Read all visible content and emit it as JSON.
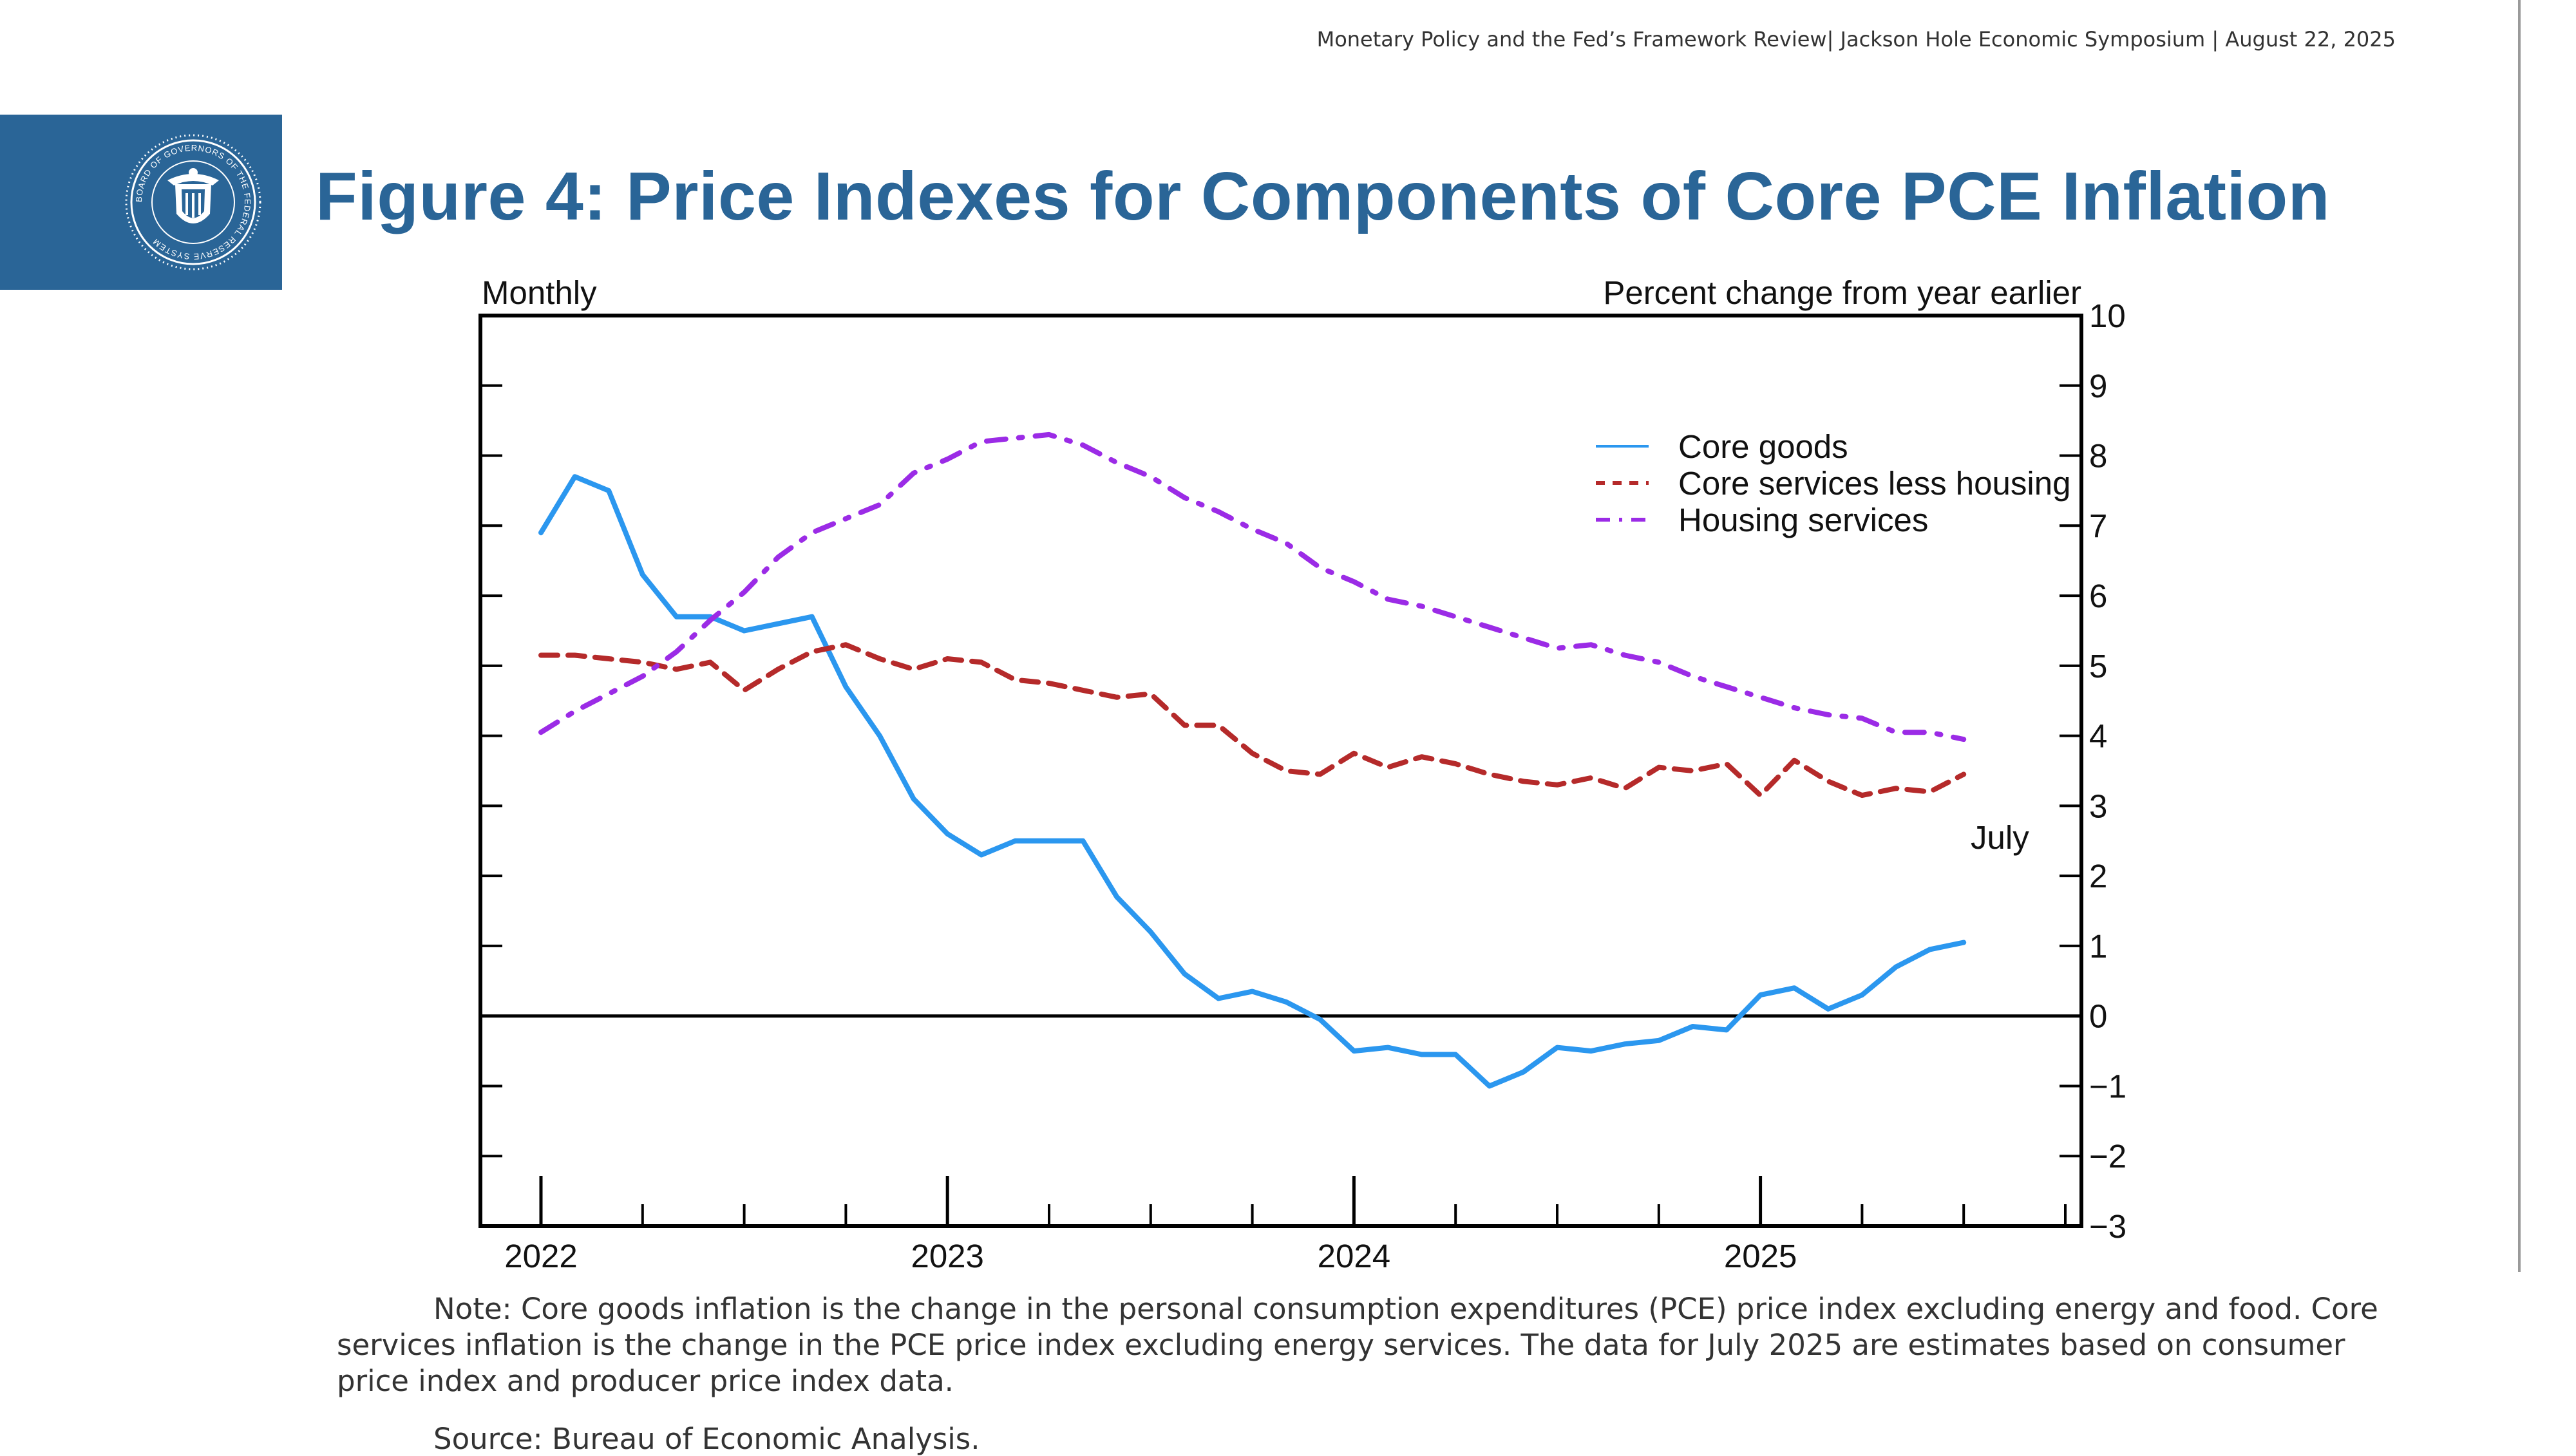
{
  "header": {
    "text": "Monetary Policy and the Fed’s Framework Review| Jackson Hole Economic Symposium | August 22, 2025"
  },
  "logo": {
    "seal_text": "BOARD OF GOVERNORS OF THE FEDERAL RESERVE SYSTEM"
  },
  "figure": {
    "title": "Figure 4: Price Indexes for Components of Core PCE Inflation",
    "note": "Note: Core goods inflation is the change in the personal consumption expenditures (PCE) price index excluding energy and food. Core services inflation is the change in the PCE price index excluding energy services. The data for July 2025 are estimates based on consumer price index and producer price index data.",
    "source": "Source: Bureau of Economic Analysis."
  },
  "colors": {
    "brand": "#2a6597",
    "core_goods": "#2b97ef",
    "core_services_less_housing": "#b52a2a",
    "housing_services": "#9b2be6"
  },
  "chart_data": {
    "type": "line",
    "left_label": "Monthly",
    "right_label": "Percent change from year earlier",
    "end_annotation": "July",
    "ylim": [
      -3,
      10
    ],
    "y_ticks": [
      10,
      9,
      8,
      7,
      6,
      5,
      4,
      3,
      2,
      1,
      0,
      -1,
      -2,
      -3
    ],
    "y_tick_labels": [
      "10",
      "9",
      "8",
      "7",
      "6",
      "5",
      "4",
      "3",
      "2",
      "1",
      "0",
      "−1",
      "−2",
      "−3"
    ],
    "x_start": "2022-01",
    "x_end": "2025-07",
    "year_labels": [
      "2022",
      "2023",
      "2024",
      "2025"
    ],
    "zero_line": true,
    "legend_position": "top-right",
    "series": [
      {
        "name": "Core goods",
        "style": "solid",
        "x": [
          "2022-01",
          "2022-02",
          "2022-03",
          "2022-04",
          "2022-05",
          "2022-06",
          "2022-07",
          "2022-08",
          "2022-09",
          "2022-10",
          "2022-11",
          "2022-12",
          "2023-01",
          "2023-02",
          "2023-03",
          "2023-04",
          "2023-05",
          "2023-06",
          "2023-07",
          "2023-08",
          "2023-09",
          "2023-10",
          "2023-11",
          "2023-12",
          "2024-01",
          "2024-02",
          "2024-03",
          "2024-04",
          "2024-05",
          "2024-06",
          "2024-07",
          "2024-08",
          "2024-09",
          "2024-10",
          "2024-11",
          "2024-12",
          "2025-01",
          "2025-02",
          "2025-03",
          "2025-04",
          "2025-05",
          "2025-06",
          "2025-07"
        ],
        "values": [
          6.9,
          7.7,
          7.5,
          6.3,
          5.7,
          5.7,
          5.5,
          5.6,
          5.7,
          4.7,
          4.0,
          3.1,
          2.6,
          2.3,
          2.5,
          2.5,
          2.5,
          1.7,
          1.2,
          0.6,
          0.25,
          0.35,
          0.2,
          -0.05,
          -0.5,
          -0.45,
          -0.55,
          -0.55,
          -1.0,
          -0.8,
          -0.45,
          -0.5,
          -0.4,
          -0.35,
          -0.15,
          -0.2,
          0.3,
          0.4,
          0.1,
          0.3,
          0.7,
          0.95,
          1.05
        ]
      },
      {
        "name": "Core services less housing",
        "style": "dashed",
        "x": [
          "2022-01",
          "2022-02",
          "2022-03",
          "2022-04",
          "2022-05",
          "2022-06",
          "2022-07",
          "2022-08",
          "2022-09",
          "2022-10",
          "2022-11",
          "2022-12",
          "2023-01",
          "2023-02",
          "2023-03",
          "2023-04",
          "2023-05",
          "2023-06",
          "2023-07",
          "2023-08",
          "2023-09",
          "2023-10",
          "2023-11",
          "2023-12",
          "2024-01",
          "2024-02",
          "2024-03",
          "2024-04",
          "2024-05",
          "2024-06",
          "2024-07",
          "2024-08",
          "2024-09",
          "2024-10",
          "2024-11",
          "2024-12",
          "2025-01",
          "2025-02",
          "2025-03",
          "2025-04",
          "2025-05",
          "2025-06",
          "2025-07"
        ],
        "values": [
          5.15,
          5.15,
          5.1,
          5.05,
          4.95,
          5.05,
          4.65,
          4.95,
          5.2,
          5.3,
          5.1,
          4.95,
          5.1,
          5.05,
          4.8,
          4.75,
          4.65,
          4.55,
          4.6,
          4.15,
          4.15,
          3.75,
          3.5,
          3.45,
          3.75,
          3.55,
          3.7,
          3.6,
          3.45,
          3.35,
          3.3,
          3.4,
          3.25,
          3.55,
          3.5,
          3.6,
          3.15,
          3.65,
          3.35,
          3.15,
          3.25,
          3.2,
          3.45
        ]
      },
      {
        "name": "Housing services",
        "style": "dash-dot",
        "x": [
          "2022-01",
          "2022-02",
          "2022-03",
          "2022-04",
          "2022-05",
          "2022-06",
          "2022-07",
          "2022-08",
          "2022-09",
          "2022-10",
          "2022-11",
          "2022-12",
          "2023-01",
          "2023-02",
          "2023-03",
          "2023-04",
          "2023-05",
          "2023-06",
          "2023-07",
          "2023-08",
          "2023-09",
          "2023-10",
          "2023-11",
          "2023-12",
          "2024-01",
          "2024-02",
          "2024-03",
          "2024-04",
          "2024-05",
          "2024-06",
          "2024-07",
          "2024-08",
          "2024-09",
          "2024-10",
          "2024-11",
          "2024-12",
          "2025-01",
          "2025-02",
          "2025-03",
          "2025-04",
          "2025-05",
          "2025-06",
          "2025-07"
        ],
        "values": [
          4.05,
          4.35,
          4.6,
          4.85,
          5.2,
          5.65,
          6.05,
          6.55,
          6.9,
          7.1,
          7.3,
          7.75,
          7.95,
          8.2,
          8.25,
          8.3,
          8.15,
          7.9,
          7.7,
          7.4,
          7.2,
          6.95,
          6.75,
          6.4,
          6.2,
          5.95,
          5.85,
          5.7,
          5.55,
          5.4,
          5.25,
          5.3,
          5.15,
          5.05,
          4.85,
          4.7,
          4.55,
          4.4,
          4.3,
          4.25,
          4.05,
          4.05,
          3.95
        ]
      }
    ]
  }
}
